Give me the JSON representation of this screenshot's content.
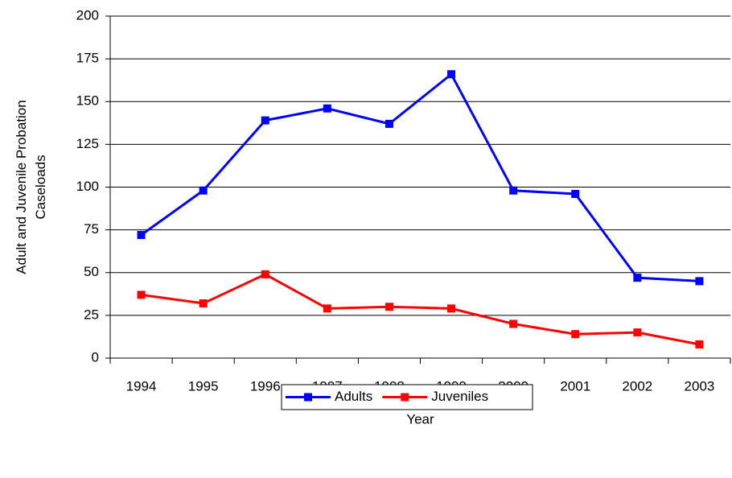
{
  "chart_data": {
    "type": "line",
    "x_label": "Year",
    "y_label": [
      "Adult and Juvenile Probation",
      "Caseloads"
    ],
    "categories": [
      "1994",
      "1995",
      "1996",
      "1997",
      "1998",
      "1999",
      "2000",
      "2001",
      "2002",
      "2003"
    ],
    "series": [
      {
        "name": "Adults",
        "color": "#0000ff",
        "values": [
          72,
          98,
          139,
          146,
          137,
          166,
          98,
          96,
          47,
          45
        ]
      },
      {
        "name": "Juveniles",
        "color": "#ff0000",
        "values": [
          37,
          32,
          49,
          29,
          30,
          29,
          20,
          14,
          15,
          8
        ]
      }
    ],
    "ylim": [
      0,
      200
    ],
    "yticks": [
      0,
      25,
      50,
      75,
      100,
      125,
      150,
      175,
      200
    ],
    "grid": true,
    "legend": "bottom"
  }
}
